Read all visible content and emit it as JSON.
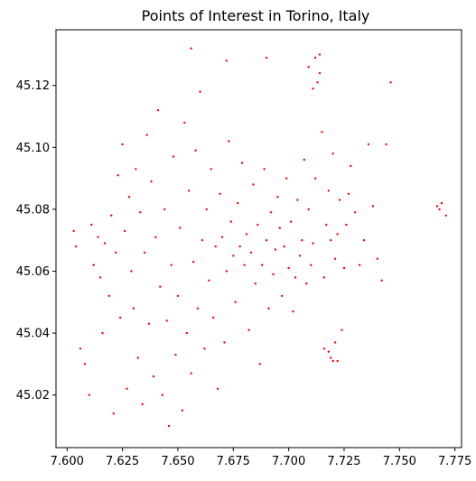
{
  "chart_data": {
    "type": "scatter",
    "title": "Points of Interest in Torino, Italy",
    "xlabel": "",
    "ylabel": "",
    "xlim": [
      7.595,
      7.778
    ],
    "ylim": [
      45.003,
      45.138
    ],
    "x_ticks": [
      7.6,
      7.625,
      7.65,
      7.675,
      7.7,
      7.725,
      7.75,
      7.775
    ],
    "x_tick_labels": [
      "7.600",
      "7.625",
      "7.650",
      "7.675",
      "7.700",
      "7.725",
      "7.750",
      "7.775"
    ],
    "y_ticks": [
      45.02,
      45.04,
      45.06,
      45.08,
      45.1,
      45.12
    ],
    "y_tick_labels": [
      "45.02",
      "45.04",
      "45.06",
      "45.08",
      "45.10",
      "45.12"
    ],
    "grid": false,
    "legend": "none",
    "marker_color": "#ff0000",
    "points": {
      "x": [
        7.603,
        7.604,
        7.606,
        7.608,
        7.61,
        7.611,
        7.612,
        7.614,
        7.615,
        7.616,
        7.617,
        7.619,
        7.62,
        7.621,
        7.622,
        7.623,
        7.624,
        7.625,
        7.626,
        7.627,
        7.628,
        7.629,
        7.63,
        7.631,
        7.632,
        7.633,
        7.634,
        7.635,
        7.636,
        7.637,
        7.638,
        7.639,
        7.64,
        7.641,
        7.642,
        7.643,
        7.644,
        7.645,
        7.646,
        7.647,
        7.648,
        7.649,
        7.65,
        7.651,
        7.652,
        7.653,
        7.654,
        7.655,
        7.656,
        7.657,
        7.658,
        7.659,
        7.66,
        7.661,
        7.662,
        7.663,
        7.664,
        7.665,
        7.666,
        7.667,
        7.668,
        7.669,
        7.67,
        7.671,
        7.672,
        7.673,
        7.674,
        7.675,
        7.676,
        7.677,
        7.678,
        7.679,
        7.68,
        7.681,
        7.682,
        7.683,
        7.684,
        7.685,
        7.686,
        7.687,
        7.688,
        7.689,
        7.69,
        7.691,
        7.692,
        7.693,
        7.694,
        7.695,
        7.696,
        7.697,
        7.698,
        7.699,
        7.7,
        7.701,
        7.702,
        7.703,
        7.704,
        7.705,
        7.706,
        7.707,
        7.708,
        7.709,
        7.71,
        7.711,
        7.712,
        7.713,
        7.714,
        7.715,
        7.716,
        7.717,
        7.718,
        7.719,
        7.72,
        7.721,
        7.722,
        7.723,
        7.724,
        7.725,
        7.726,
        7.727,
        7.728,
        7.73,
        7.732,
        7.734,
        7.736,
        7.738,
        7.74,
        7.742,
        7.744,
        7.746,
        7.767,
        7.768,
        7.769,
        7.771,
        7.656,
        7.672,
        7.69,
        7.709,
        7.712,
        7.714,
        7.711,
        7.716,
        7.72,
        7.718,
        7.719,
        7.721,
        7.722
      ],
      "y": [
        45.073,
        45.068,
        45.035,
        45.03,
        45.02,
        45.075,
        45.062,
        45.071,
        45.058,
        45.04,
        45.069,
        45.052,
        45.078,
        45.014,
        45.066,
        45.091,
        45.045,
        45.101,
        45.073,
        45.022,
        45.084,
        45.06,
        45.048,
        45.093,
        45.032,
        45.079,
        45.017,
        45.066,
        45.104,
        45.043,
        45.089,
        45.026,
        45.071,
        45.112,
        45.055,
        45.02,
        45.08,
        45.044,
        45.01,
        45.062,
        45.097,
        45.033,
        45.052,
        45.074,
        45.015,
        45.108,
        45.04,
        45.086,
        45.027,
        45.063,
        45.099,
        45.048,
        45.118,
        45.07,
        45.035,
        45.08,
        45.057,
        45.093,
        45.045,
        45.068,
        45.022,
        45.085,
        45.071,
        45.037,
        45.06,
        45.102,
        45.076,
        45.065,
        45.05,
        45.082,
        45.068,
        45.095,
        45.062,
        45.072,
        45.041,
        45.066,
        45.088,
        45.056,
        45.075,
        45.03,
        45.062,
        45.093,
        45.07,
        45.048,
        45.079,
        45.059,
        45.067,
        45.084,
        45.074,
        45.052,
        45.068,
        45.09,
        45.061,
        45.076,
        45.047,
        45.058,
        45.083,
        45.065,
        45.07,
        45.096,
        45.056,
        45.08,
        45.062,
        45.069,
        45.09,
        45.121,
        45.124,
        45.105,
        45.058,
        45.075,
        45.086,
        45.07,
        45.098,
        45.064,
        45.072,
        45.083,
        45.041,
        45.061,
        45.075,
        45.085,
        45.094,
        45.079,
        45.062,
        45.07,
        45.101,
        45.081,
        45.064,
        45.057,
        45.101,
        45.121,
        45.081,
        45.08,
        45.082,
        45.078,
        45.132,
        45.128,
        45.129,
        45.126,
        45.129,
        45.13,
        45.119,
        45.035,
        45.031,
        45.034,
        45.032,
        45.037,
        45.031
      ]
    }
  }
}
